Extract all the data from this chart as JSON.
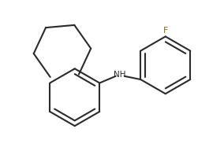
{
  "background_color": "#ffffff",
  "line_color": "#2b2b2b",
  "line_width": 1.5,
  "font_size_F": 8,
  "font_size_NH": 7.5,
  "F_color": "#8B6914",
  "NH_color": "#2b2b2b"
}
